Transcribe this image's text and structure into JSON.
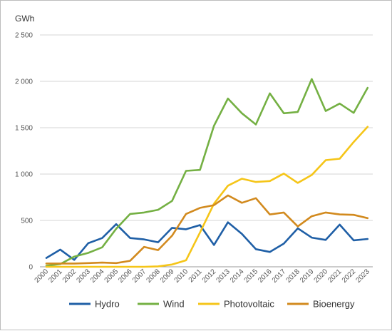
{
  "chart_data": {
    "type": "line",
    "title": "",
    "unit_label": "GWh",
    "xlabel": "",
    "ylabel": "GWh",
    "ylim": [
      0,
      2500
    ],
    "y_ticks": [
      0,
      500,
      1000,
      1500,
      2000,
      2500
    ],
    "y_tick_labels": [
      "0",
      "500",
      "1 000",
      "1 500",
      "2 000",
      "2 500"
    ],
    "grid": "horizontal",
    "legend_position": "bottom",
    "categories": [
      "2000",
      "2001",
      "2002",
      "2003",
      "2004",
      "2005",
      "2006",
      "2007",
      "2008",
      "2009",
      "2010",
      "2011",
      "2012",
      "2013",
      "2014",
      "2015",
      "2016",
      "2017",
      "2018",
      "2019",
      "2020",
      "2021",
      "2022",
      "2023"
    ],
    "series": [
      {
        "name": "Hydro",
        "color": "#1f5fa6",
        "values": [
          95,
          185,
          75,
          255,
          310,
          460,
          310,
          295,
          265,
          420,
          405,
          450,
          235,
          480,
          355,
          190,
          160,
          250,
          415,
          315,
          290,
          455,
          285,
          300
        ]
      },
      {
        "name": "Wind",
        "color": "#74b043",
        "values": [
          10,
          30,
          110,
          150,
          210,
          410,
          570,
          585,
          615,
          710,
          1035,
          1045,
          1520,
          1815,
          1655,
          1535,
          1870,
          1655,
          1670,
          2025,
          1680,
          1760,
          1660,
          1930
        ]
      },
      {
        "name": "Photovoltaic",
        "color": "#f5c518",
        "values": [
          0,
          0,
          0,
          0,
          0,
          0,
          0,
          0,
          5,
          25,
          70,
          370,
          680,
          875,
          950,
          915,
          925,
          1005,
          905,
          990,
          1150,
          1165,
          1345,
          1510
        ]
      },
      {
        "name": "Bioenergy",
        "color": "#d28a1e",
        "values": [
          35,
          35,
          35,
          40,
          45,
          40,
          65,
          215,
          180,
          335,
          570,
          635,
          665,
          770,
          690,
          740,
          565,
          585,
          435,
          545,
          585,
          565,
          560,
          525
        ]
      }
    ]
  }
}
